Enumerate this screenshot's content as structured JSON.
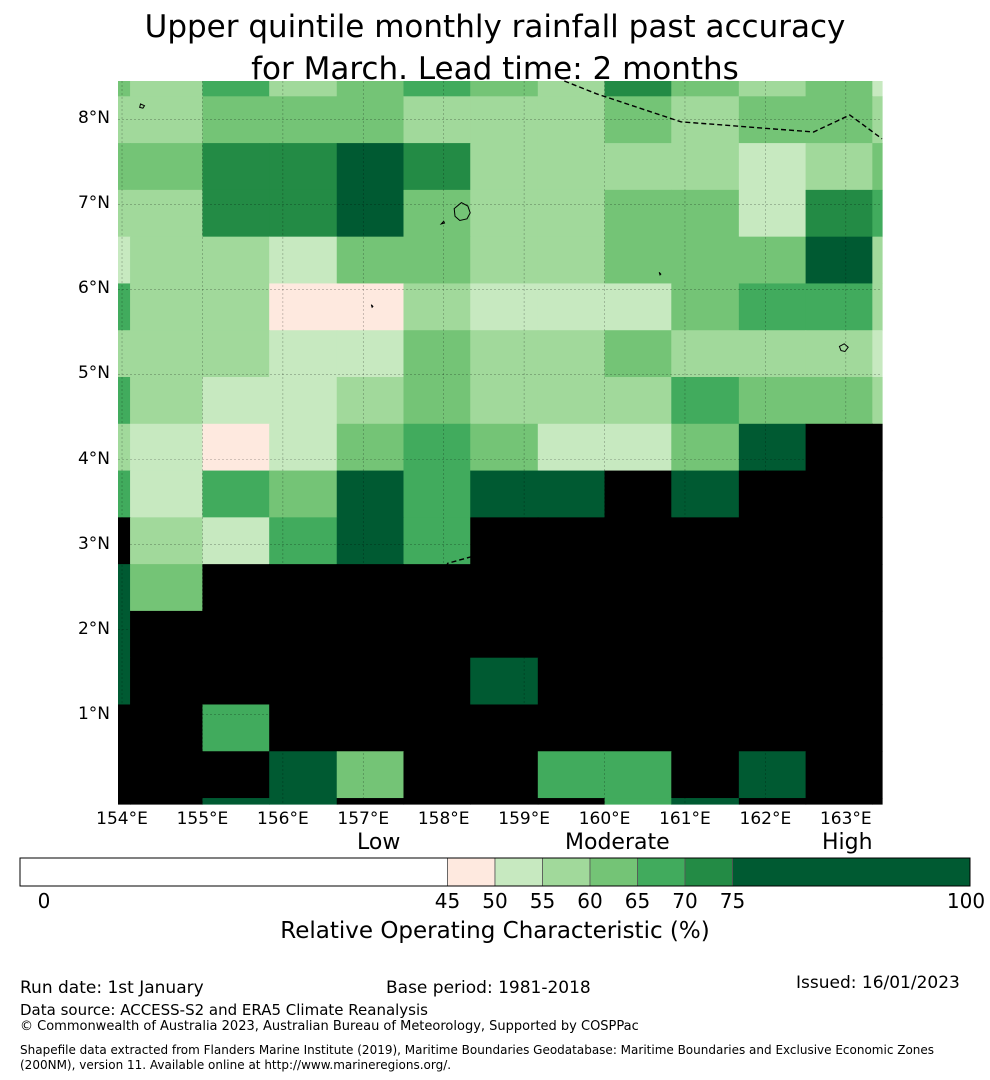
{
  "title_line1": "Upper quintile monthly rainfall past accuracy",
  "title_line2": "for March. Lead time: 2 months",
  "map": {
    "lon_min": 153.95,
    "lon_max": 163.45,
    "lat_min": -0.05,
    "lat_max": 8.45,
    "lat_ticks": [
      {
        "value": 8,
        "label": "8°N"
      },
      {
        "value": 7,
        "label": "7°N"
      },
      {
        "value": 6,
        "label": "6°N"
      },
      {
        "value": 5,
        "label": "5°N"
      },
      {
        "value": 4,
        "label": "4°N"
      },
      {
        "value": 3,
        "label": "3°N"
      },
      {
        "value": 2,
        "label": "2°N"
      },
      {
        "value": 1,
        "label": "1°N"
      }
    ],
    "lon_ticks": [
      {
        "value": 154,
        "label": "154°E"
      },
      {
        "value": 155,
        "label": "155°E"
      },
      {
        "value": 156,
        "label": "156°E"
      },
      {
        "value": 157,
        "label": "157°E"
      },
      {
        "value": 158,
        "label": "158°E"
      },
      {
        "value": 159,
        "label": "159°E"
      },
      {
        "value": 160,
        "label": "160°E"
      },
      {
        "value": 161,
        "label": "161°E"
      },
      {
        "value": 162,
        "label": "162°E"
      },
      {
        "value": 163,
        "label": "163°E"
      }
    ],
    "col_edges": [
      153.95,
      154.1,
      155.0,
      155.83,
      156.67,
      157.5,
      158.33,
      159.17,
      160.0,
      160.83,
      161.67,
      162.5,
      163.33,
      163.45
    ],
    "row_edges": [
      8.45,
      8.27,
      7.72,
      7.17,
      6.62,
      6.07,
      5.52,
      4.97,
      4.42,
      3.87,
      3.32,
      2.77,
      2.22,
      1.67,
      1.12,
      0.57,
      0.02,
      -0.05
    ],
    "grid_levels": [
      [
        3,
        2,
        4,
        2,
        3,
        4,
        3,
        2,
        5,
        3,
        2,
        3,
        1
      ],
      [
        2,
        2,
        3,
        3,
        3,
        2,
        2,
        2,
        3,
        2,
        3,
        3,
        2
      ],
      [
        3,
        3,
        5,
        5,
        6,
        5,
        2,
        2,
        2,
        2,
        1,
        2,
        3
      ],
      [
        2,
        2,
        5,
        5,
        6,
        3,
        2,
        2,
        3,
        3,
        1,
        5,
        4
      ],
      [
        1,
        2,
        2,
        1,
        3,
        3,
        2,
        2,
        3,
        3,
        3,
        6,
        2
      ],
      [
        4,
        2,
        2,
        0,
        0,
        2,
        1,
        1,
        1,
        3,
        4,
        4,
        2
      ],
      [
        2,
        2,
        2,
        1,
        1,
        3,
        2,
        2,
        3,
        2,
        2,
        2,
        1
      ],
      [
        4,
        2,
        1,
        1,
        2,
        3,
        2,
        2,
        2,
        4,
        3,
        3,
        2
      ],
      [
        2,
        1,
        0,
        1,
        3,
        4,
        3,
        1,
        1,
        3,
        6,
        7,
        7
      ],
      [
        4,
        1,
        4,
        3,
        6,
        4,
        6,
        6,
        7,
        6,
        7,
        7,
        7
      ],
      [
        7,
        2,
        1,
        4,
        6,
        4,
        7,
        7,
        7,
        7,
        7,
        7,
        7
      ],
      [
        6,
        3,
        7,
        7,
        7,
        7,
        7,
        7,
        7,
        7,
        7,
        7,
        7
      ],
      [
        6,
        7,
        7,
        7,
        7,
        7,
        7,
        7,
        7,
        7,
        7,
        7,
        7
      ],
      [
        6,
        7,
        7,
        7,
        7,
        7,
        6,
        7,
        7,
        7,
        7,
        7,
        7
      ],
      [
        7,
        7,
        4,
        7,
        7,
        7,
        7,
        7,
        7,
        7,
        7,
        7,
        7
      ],
      [
        7,
        7,
        7,
        6,
        3,
        7,
        7,
        4,
        4,
        7,
        6,
        7,
        7
      ],
      [
        7,
        7,
        6,
        6,
        7,
        7,
        7,
        7,
        4,
        6,
        7,
        7,
        7
      ]
    ],
    "boundaries": [
      [
        [
          159.5,
          8.45
        ],
        [
          159.9,
          8.3
        ],
        [
          160.95,
          7.97
        ],
        [
          162.6,
          7.85
        ],
        [
          163.05,
          8.05
        ],
        [
          163.45,
          7.77
        ]
      ],
      [
        [
          157.5,
          -0.05
        ],
        [
          157.85,
          0.6
        ],
        [
          158.05,
          1.4
        ],
        [
          157.95,
          2.2
        ],
        [
          157.92,
          2.5
        ],
        [
          158.05,
          2.78
        ],
        [
          158.7,
          2.95
        ],
        [
          159.38,
          3.12
        ],
        [
          159.7,
          3.05
        ],
        [
          160.65,
          2.83
        ],
        [
          161.2,
          2.55
        ],
        [
          161.7,
          2.25
        ],
        [
          162.3,
          2.02
        ],
        [
          163.0,
          1.9
        ],
        [
          163.45,
          1.95
        ]
      ]
    ],
    "islands": [
      [
        [
          158.13,
          6.95
        ],
        [
          158.22,
          7.02
        ],
        [
          158.3,
          6.98
        ],
        [
          158.33,
          6.9
        ],
        [
          158.29,
          6.83
        ],
        [
          158.2,
          6.81
        ],
        [
          158.14,
          6.86
        ]
      ],
      [
        [
          162.92,
          5.33
        ],
        [
          162.98,
          5.36
        ],
        [
          163.03,
          5.32
        ],
        [
          162.99,
          5.27
        ],
        [
          162.94,
          5.28
        ]
      ],
      [
        [
          154.23,
          8.18
        ],
        [
          154.28,
          8.16
        ],
        [
          154.26,
          8.13
        ],
        [
          154.22,
          8.14
        ]
      ],
      [
        [
          157.1,
          5.82
        ],
        [
          157.12,
          5.8
        ],
        [
          157.11,
          5.79
        ]
      ],
      [
        [
          160.68,
          6.2
        ],
        [
          160.7,
          6.18
        ],
        [
          160.69,
          6.17
        ]
      ],
      [
        [
          157.97,
          6.77
        ],
        [
          158.0,
          6.8
        ],
        [
          158.01,
          6.78
        ]
      ]
    ]
  },
  "colors": {
    "levels": [
      "#fee9df",
      "#c7e9c0",
      "#a1d99b",
      "#74c476",
      "#41ab5d",
      "#238b45",
      "#005a32"
    ],
    "boundary": "#000000"
  },
  "colorbar": {
    "bins": [
      0,
      45,
      50,
      55,
      60,
      65,
      70,
      75,
      100
    ],
    "bin_colors": [
      "#ffffff",
      "#fee9df",
      "#c7e9c0",
      "#a1d99b",
      "#74c476",
      "#41ab5d",
      "#238b45",
      "#005a32"
    ],
    "tick_labels": [
      "0",
      "45",
      "50",
      "55",
      "60",
      "65",
      "70",
      "75",
      "100"
    ],
    "category_low": "Low",
    "category_moderate": "Moderate",
    "category_high": "High",
    "label": "Relative Operating Characteristic (%)"
  },
  "footer": {
    "run_date": "Run date: 1st January",
    "base_period": "Base period: 1981-2018",
    "issued": "Issued: 16/01/2023",
    "data_source": "Data source: ACCESS-S2 and ERA5 Climate Reanalysis",
    "copyright": "© Commonwealth of Australia 2023, Australian Bureau of Meteorology, Supported by COSPPac",
    "shapefile_line1": "Shapefile data extracted from Flanders Marine Institute (2019), Maritime Boundaries Geodatabase: Maritime Boundaries and Exclusive Economic Zones",
    "shapefile_line2": "(200NM), version 11. Available online at http://www.marineregions.org/."
  }
}
